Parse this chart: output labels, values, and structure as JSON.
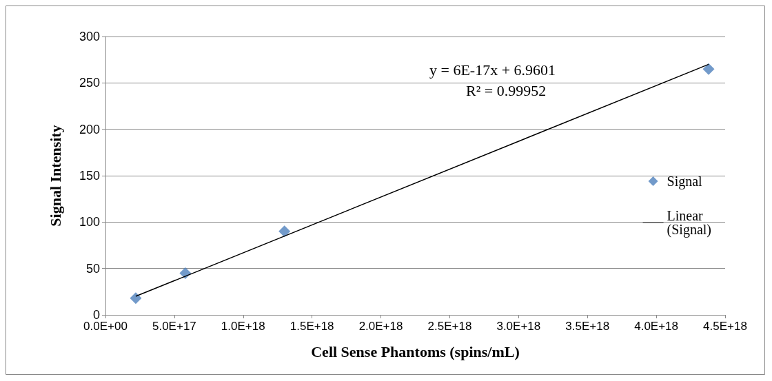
{
  "chart_data": {
    "type": "scatter",
    "xlabel": "Cell Sense Phantoms (spins/mL)",
    "ylabel": "Signal Intensity",
    "series": [
      {
        "name": "Signal",
        "color": "#4f81bd",
        "marker": "diamond",
        "x": [
          2.2e+17,
          5.8e+17,
          1.3e+18,
          4.38e+18
        ],
        "values": [
          18,
          45,
          90,
          265
        ]
      },
      {
        "name": "Linear (Signal)",
        "type": "line",
        "color": "#000000",
        "marker": "none",
        "x": [
          2.2e+17,
          4.38e+18
        ],
        "values": [
          20,
          270
        ]
      }
    ],
    "xlim": [
      0,
      4.5e+18
    ],
    "xticks": [
      {
        "value": 0,
        "label": "0.0E+00"
      },
      {
        "value": 5e+17,
        "label": "5.0E+17"
      },
      {
        "value": 1e+18,
        "label": "1.0E+18"
      },
      {
        "value": 1.5e+18,
        "label": "1.5E+18"
      },
      {
        "value": 2e+18,
        "label": "2.0E+18"
      },
      {
        "value": 2.5e+18,
        "label": "2.5E+18"
      },
      {
        "value": 3e+18,
        "label": "3.0E+18"
      },
      {
        "value": 3.5e+18,
        "label": "3.5E+18"
      },
      {
        "value": 4e+18,
        "label": "4.0E+18"
      },
      {
        "value": 4.5e+18,
        "label": "4.5E+18"
      }
    ],
    "ylim": [
      0,
      300
    ],
    "yticks": [
      0,
      50,
      100,
      150,
      200,
      250,
      300
    ],
    "grid": "y",
    "legend": "right",
    "annotations": [
      "y = 6E-17x + 6.9601",
      "R² = 0.99952"
    ]
  }
}
